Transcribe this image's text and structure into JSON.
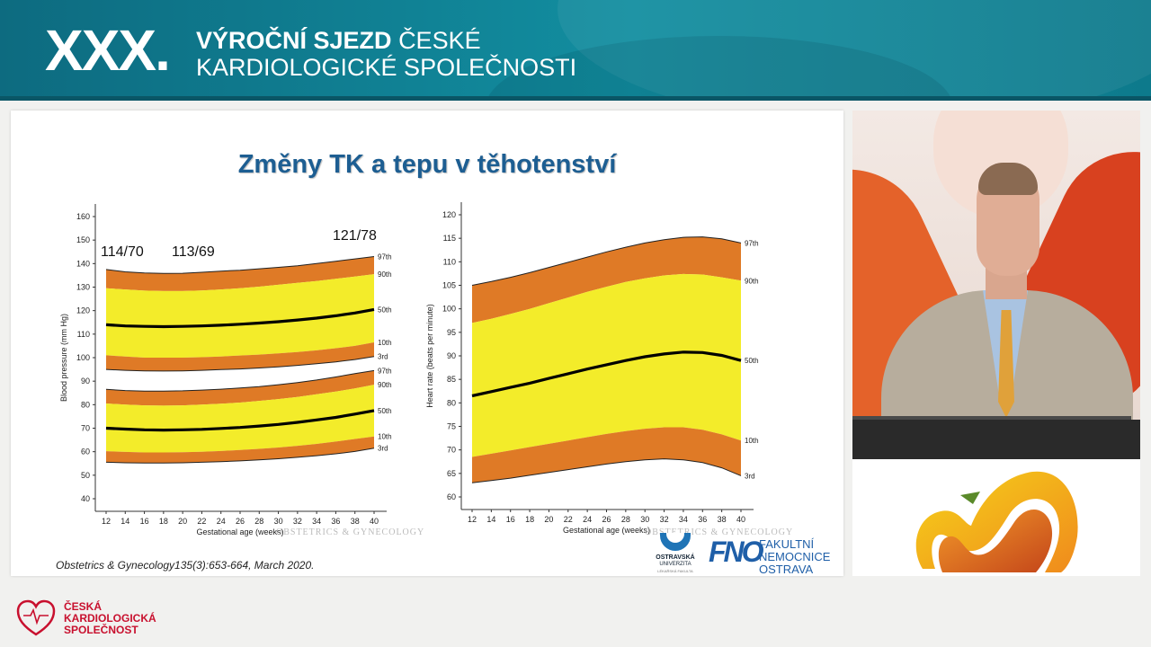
{
  "banner": {
    "edition": "XXX.",
    "title_bold": "VÝROČNÍ SJEZD",
    "title_rest": "ČESKÉ",
    "title_line2": "KARDIOLOGICKÉ SPOLEČNOSTI"
  },
  "slide": {
    "title": "Změny TK a tepu v těhotenství",
    "citation": "Obstetrics & Gynecology135(3):653-664, March 2020.",
    "watermark": "OBSTETRICS & GYNECOLOGY",
    "logo_ou": {
      "line1": "OSTRAVSKÁ",
      "line2": "UNIVERZITA",
      "line3": "LÉKAŘSKÁ FAKULTA"
    },
    "logo_fno": {
      "mark": "FNO",
      "line1": "FAKULTNÍ",
      "line2": "NEMOCNICE",
      "line3": "OSTRAVA"
    }
  },
  "footer": {
    "org_line1": "ČESKÁ",
    "org_line2": "KARDIOLOGICKÁ",
    "org_line3": "SPOLEČNOST"
  },
  "colors": {
    "banner": "#128ea0",
    "band_outer": "#df7a26",
    "band_inner": "#f3ec2a",
    "title": "#1d5e92",
    "footer_red": "#c8102e"
  },
  "chart_data": [
    {
      "type": "area",
      "x": [
        12,
        14,
        16,
        18,
        20,
        22,
        24,
        26,
        28,
        30,
        32,
        34,
        36,
        38,
        40
      ],
      "xlabel": "Gestational age (weeks)",
      "ylabel": "Blood pressure (mm Hg)",
      "yticks": [
        40,
        50,
        60,
        70,
        80,
        90,
        100,
        110,
        120,
        130,
        140,
        150,
        160
      ],
      "ylim": [
        40,
        160
      ],
      "annotations": [
        "114/70",
        "113/69",
        "121/78"
      ],
      "percentile_labels": [
        "97th",
        "90th",
        "50th",
        "10th",
        "3rd"
      ],
      "series": [
        {
          "name": "97th",
          "values": [
            137.5,
            136.5,
            136,
            135.8,
            135.9,
            136.3,
            136.8,
            137.2,
            137.8,
            138.4,
            139.1,
            140,
            141,
            142,
            143
          ]
        },
        {
          "name": "90th",
          "values": [
            129.5,
            129,
            128.5,
            128.3,
            128.3,
            128.6,
            129,
            129.5,
            130.2,
            131,
            131.8,
            132.6,
            133.5,
            134.5,
            135.5
          ]
        },
        {
          "name": "50th",
          "values": [
            114,
            113.5,
            113.3,
            113.2,
            113.3,
            113.5,
            113.8,
            114.2,
            114.7,
            115.3,
            116,
            116.8,
            117.8,
            119,
            120.5
          ]
        },
        {
          "name": "10th",
          "values": [
            101,
            100.5,
            100,
            100,
            100,
            100.2,
            100.5,
            100.9,
            101.3,
            101.8,
            102.4,
            103.1,
            104,
            105,
            106.5
          ]
        },
        {
          "name": "3rd",
          "values": [
            95,
            94.6,
            94.4,
            94.3,
            94.4,
            94.6,
            94.9,
            95.2,
            95.6,
            96.1,
            96.7,
            97.4,
            98.2,
            99.2,
            100.5
          ]
        },
        {
          "name": "97th",
          "values": [
            86.5,
            86,
            85.8,
            85.8,
            85.9,
            86.2,
            86.6,
            87.1,
            87.7,
            88.5,
            89.4,
            90.5,
            91.8,
            93.2,
            94.5
          ]
        },
        {
          "name": "90th",
          "values": [
            80.5,
            80,
            79.7,
            79.6,
            79.7,
            80,
            80.4,
            80.9,
            81.6,
            82.4,
            83.3,
            84.4,
            85.6,
            86.9,
            88.5
          ]
        },
        {
          "name": "50th",
          "values": [
            70,
            69.6,
            69.3,
            69.2,
            69.3,
            69.5,
            69.9,
            70.3,
            70.9,
            71.6,
            72.5,
            73.5,
            74.6,
            76,
            77.5
          ]
        },
        {
          "name": "10th",
          "values": [
            60.2,
            59.9,
            59.7,
            59.7,
            59.8,
            60,
            60.3,
            60.7,
            61.2,
            61.8,
            62.5,
            63.3,
            64.3,
            65.4,
            66.5
          ]
        },
        {
          "name": "3rd",
          "values": [
            55.5,
            55.3,
            55.2,
            55.2,
            55.3,
            55.5,
            55.8,
            56.1,
            56.5,
            57,
            57.6,
            58.3,
            59.1,
            60.1,
            61.5
          ]
        }
      ]
    },
    {
      "type": "area",
      "x": [
        12,
        14,
        16,
        18,
        20,
        22,
        24,
        26,
        28,
        30,
        32,
        34,
        36,
        38,
        40
      ],
      "xlabel": "Gestational age (weeks)",
      "ylabel": "Heart rate (beats per minute)",
      "yticks": [
        60,
        65,
        70,
        75,
        80,
        85,
        90,
        95,
        100,
        105,
        110,
        115,
        120
      ],
      "ylim": [
        60,
        120
      ],
      "percentile_labels": [
        "97th",
        "90th",
        "50th",
        "10th",
        "3rd"
      ],
      "series": [
        {
          "name": "97th",
          "values": [
            105,
            105.8,
            106.7,
            107.7,
            108.8,
            109.9,
            111,
            112.1,
            113.1,
            114,
            114.7,
            115.2,
            115.3,
            114.9,
            114
          ]
        },
        {
          "name": "90th",
          "values": [
            97,
            97.9,
            98.9,
            100,
            101.2,
            102.4,
            103.6,
            104.7,
            105.7,
            106.5,
            107.1,
            107.4,
            107.3,
            106.7,
            106
          ]
        },
        {
          "name": "50th",
          "values": [
            81.5,
            82.4,
            83.3,
            84.2,
            85.2,
            86.2,
            87.2,
            88.1,
            89,
            89.8,
            90.4,
            90.8,
            90.7,
            90.1,
            89
          ]
        },
        {
          "name": "10th",
          "values": [
            68.5,
            69.2,
            69.9,
            70.6,
            71.3,
            72,
            72.7,
            73.4,
            74,
            74.5,
            74.8,
            74.8,
            74.3,
            73.3,
            72
          ]
        },
        {
          "name": "3rd",
          "values": [
            63,
            63.5,
            64,
            64.6,
            65.2,
            65.8,
            66.4,
            67,
            67.5,
            67.9,
            68.1,
            67.9,
            67.3,
            66.2,
            64.5
          ]
        }
      ]
    }
  ]
}
